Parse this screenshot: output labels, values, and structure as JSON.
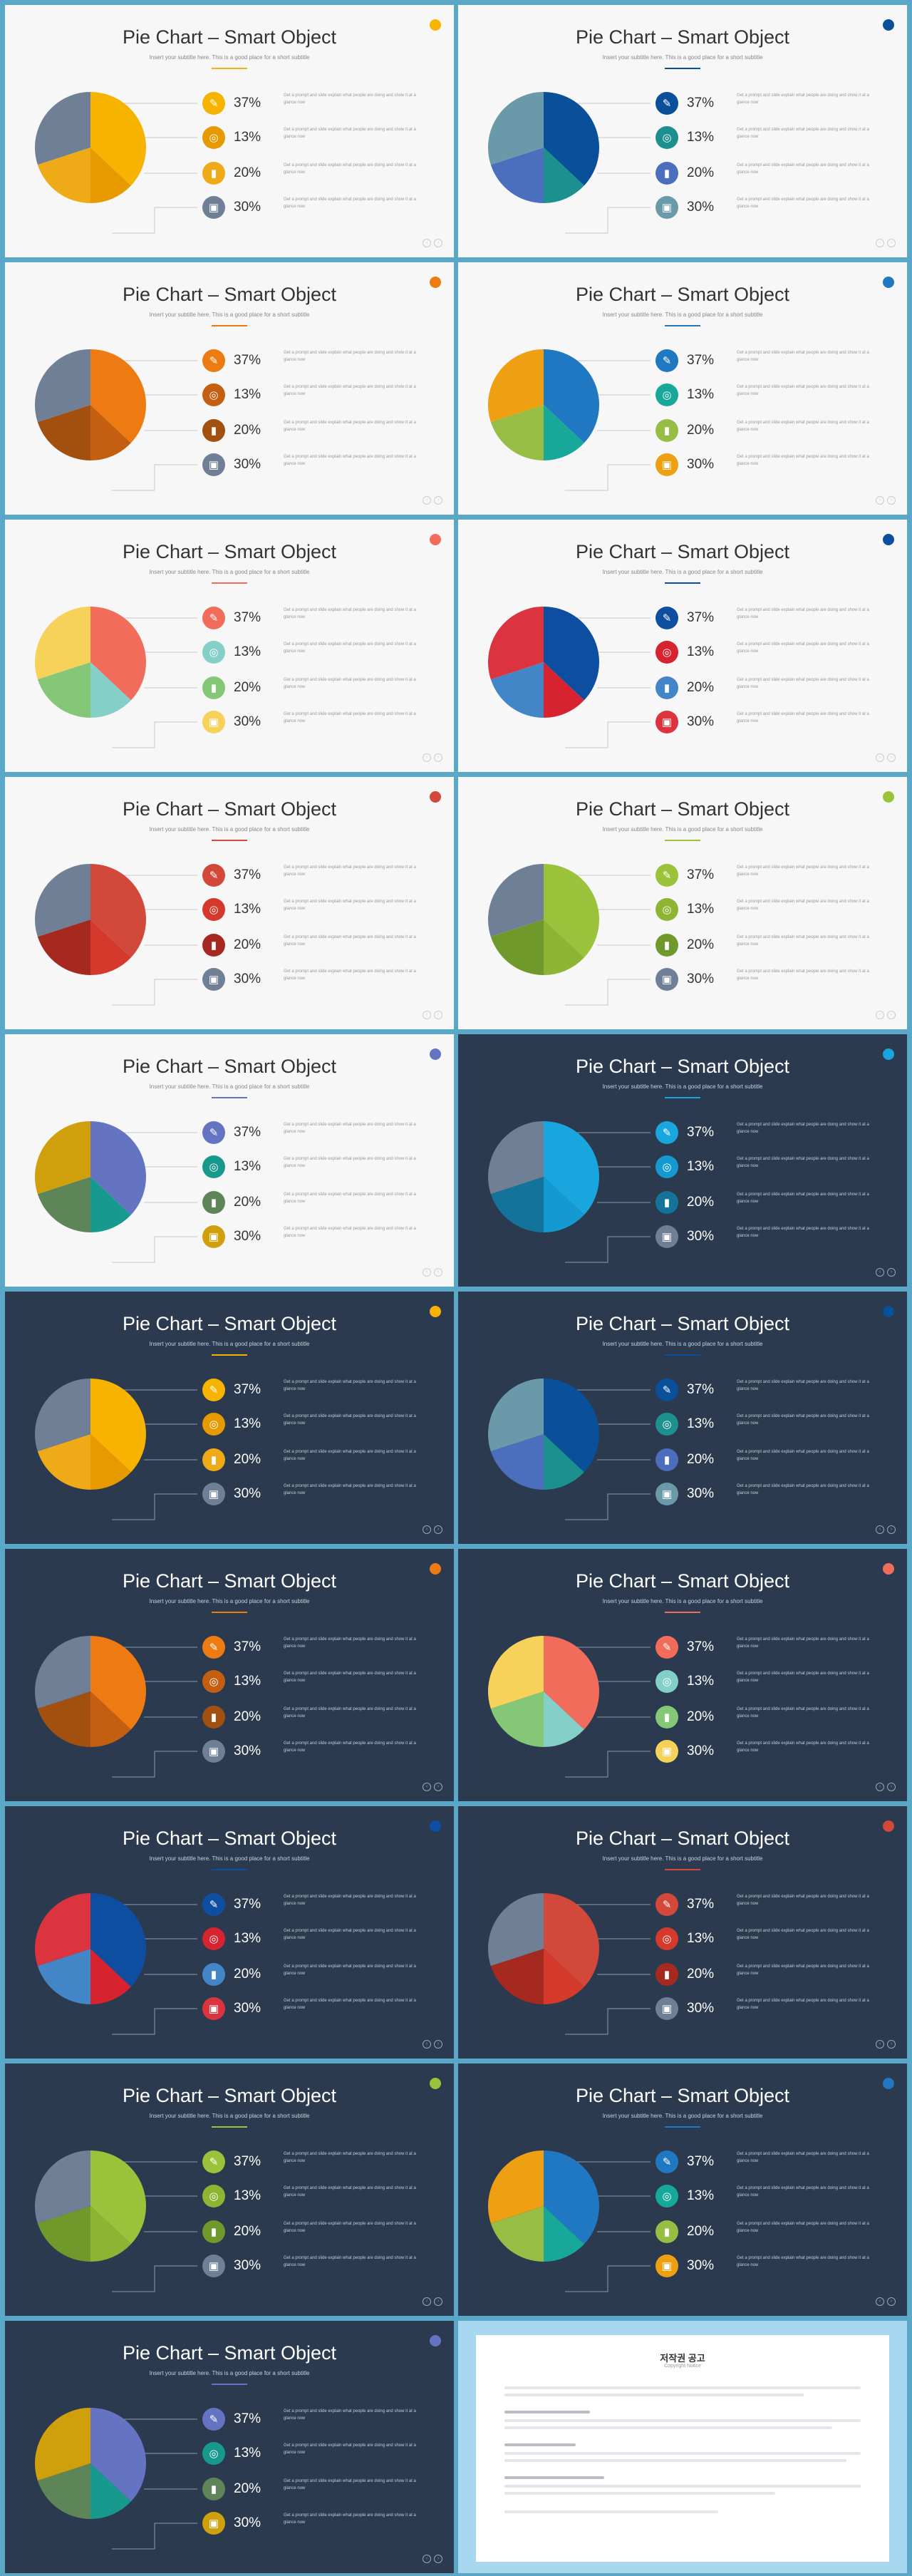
{
  "slide_title": "Pie Chart – Smart Object",
  "slide_subtitle": "Insert your subtitle here. This is a good place for a short subtitle",
  "legend": [
    {
      "label": "37%",
      "icon": "tag-icon",
      "glyph": "✎"
    },
    {
      "label": "13%",
      "icon": "broadcast-icon",
      "glyph": "◎"
    },
    {
      "label": "20%",
      "icon": "bar-chart-icon",
      "glyph": "▮"
    },
    {
      "label": "30%",
      "icon": "presentation-icon",
      "glyph": "▣"
    }
  ],
  "description": "Get a prompt and slide explain what people are doing and show it at a glance now",
  "pager": [
    "‹",
    "›"
  ],
  "slides": [
    {
      "theme": "light",
      "colors": [
        "#f6b400",
        "#e69a00",
        "#efab17",
        "#6f7f95"
      ],
      "accent": "#f6b400"
    },
    {
      "theme": "light",
      "colors": [
        "#0a4f9a",
        "#1c8f8f",
        "#4b6ebd",
        "#6a9aaa"
      ],
      "accent": "#0a4f9a"
    },
    {
      "theme": "light",
      "colors": [
        "#ee7a12",
        "#c45f12",
        "#a2500f",
        "#6f7f95"
      ],
      "accent": "#ee7a12"
    },
    {
      "theme": "light",
      "colors": [
        "#1f78c1",
        "#17a89a",
        "#98bd45",
        "#ee9f12"
      ],
      "accent": "#1f78c1"
    },
    {
      "theme": "light",
      "colors": [
        "#f26c5b",
        "#84cfc8",
        "#84c877",
        "#f7d25a"
      ],
      "accent": "#f26c5b"
    },
    {
      "theme": "light",
      "colors": [
        "#0e4ea1",
        "#d7232f",
        "#4386c8",
        "#dc343f"
      ],
      "accent": "#0e4ea1"
    },
    {
      "theme": "light",
      "colors": [
        "#d2483a",
        "#d5392b",
        "#a5291f",
        "#6f7f95"
      ],
      "accent": "#d2483a"
    },
    {
      "theme": "light",
      "colors": [
        "#9ac33b",
        "#8db432",
        "#6f9a2b",
        "#6f7f95"
      ],
      "accent": "#9ac33b"
    },
    {
      "theme": "light",
      "colors": [
        "#6574c2",
        "#18998e",
        "#5e8558",
        "#cfa00c"
      ],
      "accent": "#6574c2"
    },
    {
      "theme": "dark",
      "colors": [
        "#19a6df",
        "#149ad0",
        "#13739a",
        "#6f7f95"
      ],
      "accent": "#19a6df"
    },
    {
      "theme": "dark",
      "colors": [
        "#f6b400",
        "#e69a00",
        "#efab17",
        "#6f7f95"
      ],
      "accent": "#f6b400"
    },
    {
      "theme": "dark",
      "colors": [
        "#0a4f9a",
        "#1c8f8f",
        "#4b6ebd",
        "#6a9aaa"
      ],
      "accent": "#0a4f9a"
    },
    {
      "theme": "dark",
      "colors": [
        "#ee7a12",
        "#c45f12",
        "#a2500f",
        "#6f7f95"
      ],
      "accent": "#ee7a12"
    },
    {
      "theme": "dark",
      "colors": [
        "#f26c5b",
        "#84cfc8",
        "#84c877",
        "#f7d25a"
      ],
      "accent": "#f26c5b"
    },
    {
      "theme": "dark",
      "colors": [
        "#0e4ea1",
        "#d7232f",
        "#4386c8",
        "#dc343f"
      ],
      "accent": "#0e4ea1"
    },
    {
      "theme": "dark",
      "colors": [
        "#d2483a",
        "#d5392b",
        "#a5291f",
        "#6f7f95"
      ],
      "accent": "#d2483a"
    },
    {
      "theme": "dark",
      "colors": [
        "#9ac33b",
        "#8db432",
        "#6f9a2b",
        "#6f7f95"
      ],
      "accent": "#9ac33b"
    },
    {
      "theme": "dark",
      "colors": [
        "#1f78c1",
        "#17a89a",
        "#98bd45",
        "#ee9f12"
      ],
      "accent": "#1f78c1"
    },
    {
      "theme": "dark",
      "colors": [
        "#6574c2",
        "#18998e",
        "#5e8558",
        "#cfa00c"
      ],
      "accent": "#6574c2"
    }
  ],
  "chart_data": {
    "type": "pie",
    "categories": [
      "37%",
      "13%",
      "20%",
      "30%"
    ],
    "values": [
      37,
      13,
      20,
      30
    ]
  },
  "copyright": {
    "title": "저작권 공고",
    "subtitle": "Copyright Notice"
  }
}
